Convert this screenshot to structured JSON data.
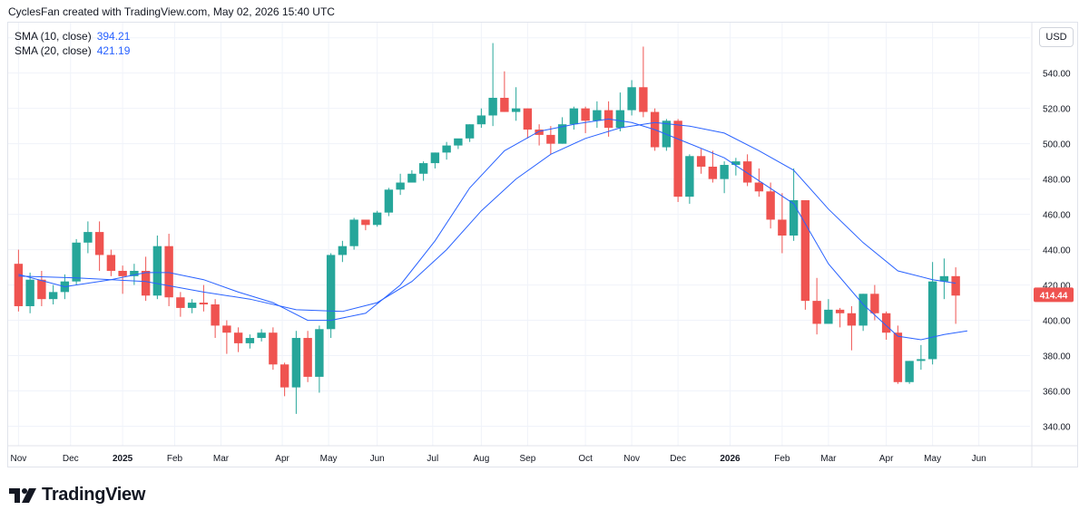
{
  "header": {
    "text": "CyclesFan created with TradingView.com, May 02, 2026 15:40 UTC"
  },
  "legend": {
    "sma10_label": "SMA (10, close)",
    "sma10_value": "394.21",
    "sma20_label": "SMA (20, close)",
    "sma20_value": "421.19"
  },
  "currency_button": "USD",
  "last_price_label": "414.44",
  "footer": {
    "brand": "TradingView"
  },
  "colors": {
    "up": "#26a69a",
    "down": "#ef5350",
    "sma10": "#2962ff",
    "sma20": "#2962ff",
    "last_price_bg": "#ef5350"
  },
  "chart_data": {
    "type": "candlestick",
    "ylim": [
      330,
      566
    ],
    "y_ticks": [
      340,
      360,
      380,
      400,
      420,
      440,
      460,
      480,
      500,
      520,
      540,
      560
    ],
    "x_ticks": [
      {
        "label": "Nov",
        "bar": 0.5
      },
      {
        "label": "Dec",
        "bar": 5
      },
      {
        "label": "2025",
        "bar": 9.5
      },
      {
        "label": "Feb",
        "bar": 14
      },
      {
        "label": "Mar",
        "bar": 18
      },
      {
        "label": "Apr",
        "bar": 23.3
      },
      {
        "label": "May",
        "bar": 27.3
      },
      {
        "label": "Jun",
        "bar": 31.5
      },
      {
        "label": "Jul",
        "bar": 36.3
      },
      {
        "label": "Aug",
        "bar": 40.5
      },
      {
        "label": "Sep",
        "bar": 44.5
      },
      {
        "label": "Oct",
        "bar": 49.5
      },
      {
        "label": "Nov",
        "bar": 53.5
      },
      {
        "label": "Dec",
        "bar": 57.5
      },
      {
        "label": "2026",
        "bar": 62
      },
      {
        "label": "Feb",
        "bar": 66.5
      },
      {
        "label": "Mar",
        "bar": 70.5
      },
      {
        "label": "Apr",
        "bar": 75.5
      },
      {
        "label": "May",
        "bar": 79.5
      },
      {
        "label": "Jun",
        "bar": 83.5
      }
    ],
    "candles": [
      [
        432,
        408,
        440,
        405
      ],
      [
        408,
        423,
        427,
        404
      ],
      [
        423,
        412,
        428,
        408
      ],
      [
        412,
        416,
        420,
        409
      ],
      [
        416,
        422,
        426,
        412
      ],
      [
        422,
        444,
        446,
        420
      ],
      [
        444,
        450,
        456,
        438
      ],
      [
        450,
        437,
        456,
        428
      ],
      [
        437,
        428,
        440,
        425
      ],
      [
        428,
        425,
        431,
        415
      ],
      [
        425,
        428,
        432,
        420
      ],
      [
        428,
        414,
        436,
        411
      ],
      [
        414,
        442,
        448,
        412
      ],
      [
        442,
        413,
        449,
        408
      ],
      [
        413,
        407,
        416,
        402
      ],
      [
        407,
        410,
        412,
        404
      ],
      [
        410,
        409,
        420,
        405
      ],
      [
        409,
        397,
        412,
        390
      ],
      [
        397,
        393,
        400,
        381
      ],
      [
        393,
        387,
        396,
        382
      ],
      [
        387,
        390,
        392,
        384
      ],
      [
        390,
        393,
        395,
        388
      ],
      [
        393,
        375,
        396,
        372
      ],
      [
        375,
        362,
        376,
        357
      ],
      [
        362,
        390,
        394,
        347
      ],
      [
        390,
        368,
        394,
        365
      ],
      [
        368,
        395,
        397,
        359
      ],
      [
        395,
        437,
        438,
        390
      ],
      [
        437,
        442,
        445,
        433
      ],
      [
        442,
        457,
        458,
        440
      ],
      [
        457,
        454,
        456,
        451
      ],
      [
        454,
        461,
        462,
        453
      ],
      [
        461,
        474,
        475,
        459
      ],
      [
        474,
        478,
        483,
        471
      ],
      [
        478,
        483,
        485,
        478
      ],
      [
        483,
        489,
        490,
        479
      ],
      [
        489,
        495,
        495,
        486
      ],
      [
        495,
        499,
        501,
        491
      ],
      [
        499,
        503,
        502,
        497
      ],
      [
        503,
        511,
        511,
        501
      ],
      [
        511,
        516,
        520,
        509
      ],
      [
        516,
        526,
        557,
        510
      ],
      [
        526,
        518,
        541,
        518
      ],
      [
        518,
        520,
        532,
        513
      ],
      [
        520,
        508,
        520,
        503
      ],
      [
        508,
        505,
        511,
        499
      ],
      [
        505,
        500,
        510,
        494
      ],
      [
        500,
        511,
        515,
        500
      ],
      [
        511,
        520,
        521,
        508
      ],
      [
        520,
        513,
        521,
        506
      ],
      [
        513,
        519,
        524,
        509
      ],
      [
        519,
        509,
        524,
        504
      ],
      [
        509,
        519,
        529,
        507
      ],
      [
        519,
        532,
        536,
        516
      ],
      [
        532,
        518,
        555,
        515
      ],
      [
        518,
        498,
        520,
        496
      ],
      [
        498,
        513,
        514,
        496
      ],
      [
        513,
        470,
        514,
        467
      ],
      [
        470,
        493,
        494,
        466
      ],
      [
        493,
        487,
        497,
        483
      ],
      [
        487,
        480,
        496,
        478
      ],
      [
        480,
        488,
        490,
        472
      ],
      [
        488,
        490,
        492,
        482
      ],
      [
        490,
        478,
        494,
        476
      ],
      [
        478,
        473,
        486,
        470
      ],
      [
        473,
        457,
        478,
        452
      ],
      [
        457,
        448,
        472,
        438
      ],
      [
        448,
        468,
        486,
        445
      ],
      [
        468,
        411,
        468,
        406
      ],
      [
        411,
        398,
        424,
        392
      ],
      [
        398,
        406,
        412,
        400
      ],
      [
        406,
        404,
        407,
        396
      ],
      [
        404,
        397,
        408,
        383
      ],
      [
        397,
        415,
        415,
        394
      ],
      [
        415,
        404,
        420,
        400
      ],
      [
        404,
        393,
        405,
        389
      ],
      [
        393,
        365,
        397,
        364
      ],
      [
        365,
        377,
        377,
        364
      ],
      [
        377,
        378,
        386,
        372
      ],
      [
        378,
        422,
        433,
        375
      ],
      [
        422,
        425,
        435,
        412
      ],
      [
        425,
        414,
        430,
        398
      ]
    ],
    "sma10": [
      [
        0,
        426
      ],
      [
        4,
        419
      ],
      [
        8,
        423
      ],
      [
        11,
        427
      ],
      [
        13,
        427
      ],
      [
        16,
        423
      ],
      [
        19,
        416
      ],
      [
        22,
        410
      ],
      [
        25,
        400
      ],
      [
        27,
        400
      ],
      [
        30,
        404
      ],
      [
        33,
        420
      ],
      [
        36,
        445
      ],
      [
        39,
        475
      ],
      [
        42,
        496
      ],
      [
        45,
        507
      ],
      [
        48,
        511
      ],
      [
        51,
        514
      ],
      [
        53,
        512
      ],
      [
        55,
        508
      ],
      [
        58,
        500
      ],
      [
        61,
        492
      ],
      [
        64,
        479
      ],
      [
        67,
        466
      ],
      [
        70,
        432
      ],
      [
        73,
        409
      ],
      [
        76,
        391
      ],
      [
        78,
        389
      ],
      [
        80,
        392
      ],
      [
        82,
        394
      ]
    ],
    "sma20": [
      [
        0,
        425
      ],
      [
        5,
        424
      ],
      [
        11,
        422
      ],
      [
        16,
        416
      ],
      [
        20,
        412
      ],
      [
        24,
        406
      ],
      [
        28,
        405
      ],
      [
        31,
        410
      ],
      [
        34,
        422
      ],
      [
        37,
        440
      ],
      [
        40,
        462
      ],
      [
        43,
        480
      ],
      [
        46,
        494
      ],
      [
        49,
        503
      ],
      [
        52,
        509
      ],
      [
        55,
        512
      ],
      [
        58,
        510
      ],
      [
        61,
        506
      ],
      [
        64,
        496
      ],
      [
        67,
        485
      ],
      [
        70,
        463
      ],
      [
        73,
        444
      ],
      [
        76,
        428
      ],
      [
        79,
        423
      ],
      [
        81,
        421
      ]
    ]
  }
}
